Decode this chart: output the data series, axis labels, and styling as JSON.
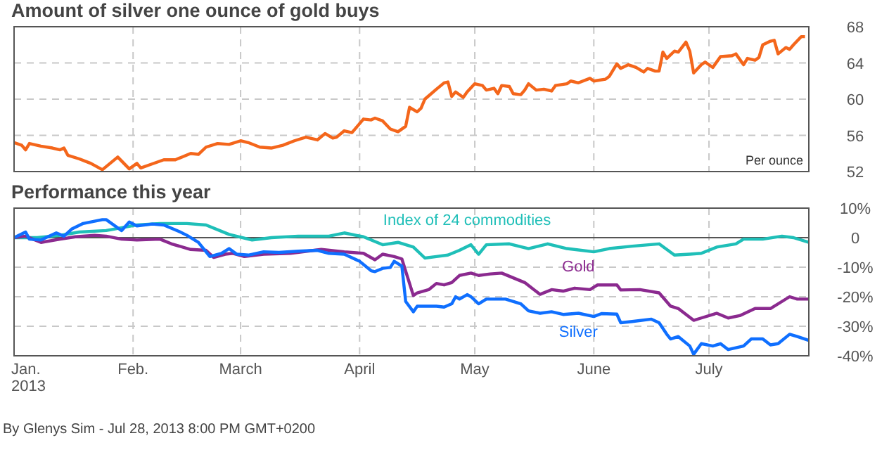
{
  "chart_data": [
    {
      "type": "line",
      "title": "Amount of silver one ounce of gold buys",
      "annotations": [
        "Per ounce"
      ],
      "x": [
        "2013-01-01",
        "2013-01-03",
        "2013-01-04",
        "2013-01-05",
        "2013-01-08",
        "2013-01-11",
        "2013-01-13",
        "2013-01-14",
        "2013-01-15",
        "2013-01-18",
        "2013-01-21",
        "2013-01-24",
        "2013-01-28",
        "2013-01-31",
        "2013-02-02",
        "2013-02-03",
        "2013-02-05",
        "2013-02-09",
        "2013-02-12",
        "2013-02-16",
        "2013-02-18",
        "2013-02-20",
        "2013-02-23",
        "2013-02-26",
        "2013-03-01",
        "2013-03-03",
        "2013-03-06",
        "2013-03-09",
        "2013-03-12",
        "2013-03-15",
        "2013-03-18",
        "2013-03-21",
        "2013-03-23",
        "2013-03-25",
        "2013-03-26",
        "2013-03-28",
        "2013-03-30",
        "2013-04-02",
        "2013-04-04",
        "2013-04-05",
        "2013-04-07",
        "2013-04-09",
        "2013-04-11",
        "2013-04-13",
        "2013-04-14",
        "2013-04-16",
        "2013-04-17",
        "2013-04-18",
        "2013-04-21",
        "2013-04-23",
        "2013-04-24",
        "2013-04-25",
        "2013-04-26",
        "2013-04-28",
        "2013-04-29",
        "2013-05-01",
        "2013-05-03",
        "2013-05-04",
        "2013-05-06",
        "2013-05-07",
        "2013-05-08",
        "2013-05-10",
        "2013-05-11",
        "2013-05-13",
        "2013-05-14",
        "2013-05-15",
        "2013-05-17",
        "2013-05-19",
        "2013-05-21",
        "2013-05-22",
        "2013-05-25",
        "2013-05-26",
        "2013-05-28",
        "2013-05-31",
        "2013-06-01",
        "2013-06-04",
        "2013-06-05",
        "2013-06-07",
        "2013-06-08",
        "2013-06-10",
        "2013-06-12",
        "2013-06-14",
        "2013-06-15",
        "2013-06-17",
        "2013-06-18",
        "2013-06-19",
        "2013-06-20",
        "2013-06-22",
        "2013-06-23",
        "2013-06-25",
        "2013-06-26",
        "2013-06-27",
        "2013-06-29",
        "2013-06-30",
        "2013-07-02",
        "2013-07-04",
        "2013-07-07",
        "2013-07-08",
        "2013-07-10",
        "2013-07-11",
        "2013-07-13",
        "2013-07-14",
        "2013-07-15",
        "2013-07-17",
        "2013-07-18",
        "2013-07-19",
        "2013-07-21",
        "2013-07-22",
        "2013-07-23",
        "2013-07-25",
        "2013-07-26"
      ],
      "series": [
        {
          "color": "#f4661b",
          "values": [
            55.2,
            54.9,
            54.4,
            55.1,
            54.8,
            54.6,
            54.4,
            54.6,
            53.8,
            53.4,
            52.9,
            52.2,
            53.6,
            52.3,
            52.9,
            52.4,
            52.7,
            53.3,
            53.3,
            54.0,
            53.9,
            54.7,
            55.1,
            55.0,
            55.4,
            55.2,
            54.7,
            54.6,
            54.9,
            55.4,
            55.8,
            55.5,
            56.2,
            55.7,
            55.8,
            56.5,
            56.3,
            57.8,
            57.7,
            57.9,
            57.6,
            56.7,
            56.4,
            57.0,
            59.1,
            58.6,
            59.0,
            60.0,
            61.1,
            61.8,
            61.9,
            60.3,
            60.8,
            60.2,
            60.8,
            61.7,
            61.5,
            61.0,
            61.2,
            60.6,
            61.5,
            61.4,
            60.6,
            60.5,
            61.0,
            61.7,
            61.0,
            61.1,
            60.9,
            61.5,
            61.7,
            62.0,
            61.8,
            62.3,
            62.0,
            62.2,
            62.5,
            63.9,
            63.4,
            63.8,
            63.5,
            63.0,
            63.4,
            63.1,
            63.1,
            65.2,
            64.5,
            65.3,
            65.2,
            66.3,
            65.3,
            62.9,
            63.8,
            64.1,
            63.5,
            64.7,
            64.8,
            65.0,
            63.8,
            64.5,
            64.3,
            64.6,
            66.0,
            66.4,
            66.5,
            65.0,
            65.7,
            65.5,
            66.0,
            66.9,
            66.9
          ]
        }
      ],
      "xlim": [
        "2013-01-01",
        "2013-07-27"
      ],
      "xticks": [
        {
          "value": "2013-01-01",
          "label": null
        },
        {
          "value": "2013-02-01",
          "label": null
        },
        {
          "value": "2013-03-01",
          "label": null
        },
        {
          "value": "2013-04-01",
          "label": null
        },
        {
          "value": "2013-05-01",
          "label": null
        },
        {
          "value": "2013-06-01",
          "label": null
        },
        {
          "value": "2013-07-01",
          "label": null
        }
      ],
      "ylim": [
        52,
        68
      ],
      "yticks": [
        52,
        56,
        60,
        64,
        68
      ],
      "grid": true,
      "tick_labels": "y",
      "line_style": "solid",
      "marker": "none"
    },
    {
      "type": "line",
      "title": "Performance this year",
      "annotations": [
        "By Glenys Sim - Jul 28, 2013 8:00 PM GMT+0200"
      ],
      "series": [
        {
          "name": "Index of 24 commodities",
          "color": "#1fbfb8",
          "x": [
            "2013-01-01",
            "2013-01-07",
            "2013-01-13",
            "2013-01-18",
            "2013-01-25",
            "2013-02-02",
            "2013-02-08",
            "2013-02-15",
            "2013-02-20",
            "2013-02-26",
            "2013-03-04",
            "2013-03-09",
            "2013-03-16",
            "2013-03-24",
            "2013-03-28",
            "2013-04-02",
            "2013-04-07",
            "2013-04-11",
            "2013-04-15",
            "2013-04-18",
            "2013-04-21",
            "2013-04-24",
            "2013-04-27",
            "2013-04-30",
            "2013-05-02",
            "2013-05-04",
            "2013-05-10",
            "2013-05-15",
            "2013-05-20",
            "2013-05-25",
            "2013-06-01",
            "2013-06-05",
            "2013-06-11",
            "2013-06-18",
            "2013-06-22",
            "2013-06-26",
            "2013-06-29",
            "2013-07-03",
            "2013-07-08",
            "2013-07-10",
            "2013-07-15",
            "2013-07-20",
            "2013-07-23",
            "2013-07-27"
          ],
          "values": [
            0,
            0,
            0.8,
            1.9,
            2.4,
            4.3,
            4.8,
            4.8,
            4.3,
            1.1,
            -0.8,
            0,
            0.5,
            0.5,
            1.6,
            0.3,
            -2.4,
            -1.6,
            -3.2,
            -6.9,
            -6.4,
            -5.9,
            -4.3,
            -2.4,
            -5.6,
            -2.4,
            -2.1,
            -3.7,
            -2.1,
            -3.7,
            -4.8,
            -3.7,
            -2.9,
            -2.1,
            -5.9,
            -5.6,
            -5.3,
            -3.2,
            -2.1,
            -0.5,
            -0.5,
            0.5,
            0,
            -1.6
          ]
        },
        {
          "name": "Gold",
          "color": "#8b2a8f",
          "x": [
            "2013-01-01",
            "2013-01-04",
            "2013-01-08",
            "2013-01-13",
            "2013-01-17",
            "2013-01-22",
            "2013-01-25",
            "2013-01-29",
            "2013-02-02",
            "2013-02-08",
            "2013-02-11",
            "2013-02-16",
            "2013-02-20",
            "2013-02-22",
            "2013-02-25",
            "2013-02-27",
            "2013-03-02",
            "2013-03-07",
            "2013-03-14",
            "2013-03-22",
            "2013-03-28",
            "2013-04-02",
            "2013-04-05",
            "2013-04-07",
            "2013-04-10",
            "2013-04-12",
            "2013-04-15",
            "2013-04-16",
            "2013-04-19",
            "2013-04-21",
            "2013-04-23",
            "2013-04-25",
            "2013-04-27",
            "2013-04-30",
            "2013-05-02",
            "2013-05-05",
            "2013-05-08",
            "2013-05-11",
            "2013-05-14",
            "2013-05-18",
            "2013-05-21",
            "2013-05-24",
            "2013-05-27",
            "2013-05-31",
            "2013-06-02",
            "2013-06-07",
            "2013-06-08",
            "2013-06-13",
            "2013-06-18",
            "2013-06-21",
            "2013-06-23",
            "2013-06-27",
            "2013-06-29",
            "2013-07-03",
            "2013-07-06",
            "2013-07-09",
            "2013-07-13",
            "2013-07-17",
            "2013-07-22",
            "2013-07-24",
            "2013-07-27"
          ],
          "values": [
            0,
            0.5,
            -1.6,
            -0.5,
            0.3,
            0.8,
            0.5,
            -0.5,
            -0.8,
            -0.5,
            -2.1,
            -4.0,
            -4.3,
            -6.7,
            -5.6,
            -5.3,
            -6.4,
            -5.6,
            -5.3,
            -4.0,
            -4.8,
            -5.3,
            -7.5,
            -5.6,
            -6.4,
            -7.2,
            -19.6,
            -18.7,
            -17.6,
            -15.5,
            -16.0,
            -15.2,
            -12.8,
            -12.0,
            -12.8,
            -12.3,
            -12.0,
            -13.6,
            -15.2,
            -19.2,
            -17.6,
            -18.1,
            -17.1,
            -17.6,
            -16.0,
            -16.0,
            -17.7,
            -17.6,
            -18.7,
            -23.2,
            -24.0,
            -28.0,
            -27.2,
            -25.6,
            -27.2,
            -26.4,
            -24.0,
            -24.0,
            -20.0,
            -20.8,
            -20.8
          ]
        },
        {
          "name": "Silver",
          "color": "#0f6fff",
          "x": [
            "2013-01-01",
            "2013-01-04",
            "2013-01-05",
            "2013-01-08",
            "2013-01-12",
            "2013-01-14",
            "2013-01-16",
            "2013-01-19",
            "2013-01-24",
            "2013-01-25",
            "2013-01-29",
            "2013-01-31",
            "2013-02-02",
            "2013-02-06",
            "2013-02-09",
            "2013-02-13",
            "2013-02-15",
            "2013-02-18",
            "2013-02-19",
            "2013-02-21",
            "2013-02-24",
            "2013-02-26",
            "2013-02-28",
            "2013-03-03",
            "2013-03-07",
            "2013-03-11",
            "2013-03-16",
            "2013-03-21",
            "2013-03-24",
            "2013-03-28",
            "2013-04-01",
            "2013-04-04",
            "2013-04-05",
            "2013-04-07",
            "2013-04-09",
            "2013-04-10",
            "2013-04-12",
            "2013-04-13",
            "2013-04-15",
            "2013-04-16",
            "2013-04-21",
            "2013-04-23",
            "2013-04-25",
            "2013-04-26",
            "2013-04-27",
            "2013-04-29",
            "2013-04-30",
            "2013-05-02",
            "2013-05-04",
            "2013-05-09",
            "2013-05-13",
            "2013-05-15",
            "2013-05-18",
            "2013-05-21",
            "2013-05-24",
            "2013-05-28",
            "2013-06-01",
            "2013-06-03",
            "2013-06-07",
            "2013-06-08",
            "2013-06-11",
            "2013-06-16",
            "2013-06-18",
            "2013-06-20",
            "2013-06-21",
            "2013-06-23",
            "2013-06-26",
            "2013-06-27",
            "2013-06-29",
            "2013-07-02",
            "2013-07-04",
            "2013-07-06",
            "2013-07-10",
            "2013-07-12",
            "2013-07-15",
            "2013-07-17",
            "2013-07-19",
            "2013-07-22",
            "2013-07-24",
            "2013-07-27"
          ],
          "values": [
            0,
            1.9,
            -0.5,
            -0.8,
            1.6,
            0.5,
            2.9,
            4.8,
            6.1,
            6.1,
            2.4,
            5.3,
            4.0,
            4.6,
            4.3,
            2.1,
            0.8,
            -1.6,
            -3.2,
            -6.4,
            -5.3,
            -3.7,
            -5.6,
            -5.9,
            -4.8,
            -5.0,
            -4.6,
            -4.3,
            -5.3,
            -5.6,
            -8.0,
            -11.2,
            -11.5,
            -10.4,
            -10.1,
            -8.0,
            -9.6,
            -21.6,
            -25.1,
            -23.2,
            -23.2,
            -23.5,
            -22.4,
            -20.0,
            -20.8,
            -19.3,
            -20.0,
            -22.4,
            -20.8,
            -20.8,
            -22.4,
            -24.8,
            -25.6,
            -25.1,
            -26.0,
            -25.6,
            -26.7,
            -25.7,
            -25.9,
            -28.8,
            -28.4,
            -27.6,
            -28.8,
            -32.7,
            -34.3,
            -33.5,
            -36.7,
            -39.5,
            -35.9,
            -36.7,
            -35.9,
            -37.9,
            -36.7,
            -34.3,
            -34.3,
            -36.3,
            -35.9,
            -32.7,
            -33.5,
            -34.8
          ]
        }
      ],
      "xlim": [
        "2013-01-01",
        "2013-07-27"
      ],
      "xticks": [
        {
          "value": "2013-01-01",
          "label": "Jan.\n2013"
        },
        {
          "value": "2013-02-01",
          "label": "Feb."
        },
        {
          "value": "2013-03-01",
          "label": "March"
        },
        {
          "value": "2013-04-01",
          "label": "April"
        },
        {
          "value": "2013-05-01",
          "label": "May"
        },
        {
          "value": "2013-06-01",
          "label": "June"
        },
        {
          "value": "2013-07-01",
          "label": "July"
        }
      ],
      "ylim": [
        -40,
        10
      ],
      "yticks": [
        {
          "value": 10,
          "label": "10%"
        },
        0,
        {
          "value": -10,
          "label": "-10%"
        },
        {
          "value": -20,
          "label": "-20%"
        },
        {
          "value": -30,
          "label": "-30%"
        },
        {
          "value": -40,
          "label": "-40%"
        }
      ],
      "ref_lines": [
        {
          "axis": "y",
          "value": 0,
          "color": "#555555"
        }
      ],
      "grid": true,
      "line_style": "solid",
      "marker": "none"
    }
  ]
}
